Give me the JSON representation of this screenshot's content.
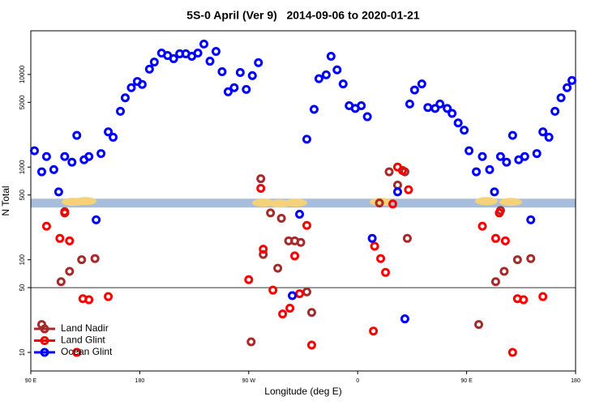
{
  "chart_data": {
    "type": "scatter",
    "title": "5S-0 April (Ver 9)   2014-09-06 to 2020-01-21",
    "x_label": "Longitude (deg E)",
    "y_label": "N Total",
    "xlim": [
      90,
      540
    ],
    "xticks": [
      {
        "value": 90,
        "label": "90 E"
      },
      180,
      {
        "value": 270,
        "label": "90 W"
      },
      {
        "value": 360,
        "label": "0"
      },
      {
        "value": 450,
        "label": "90 E"
      },
      {
        "value": 540,
        "label": "180"
      }
    ],
    "ylim": [
      6.3,
      29600
    ],
    "log_y": true,
    "yticks": [
      10,
      50,
      100,
      500,
      1000,
      5000,
      10000
    ],
    "hline": 50,
    "band": [
      366,
      456
    ],
    "band_color": "#a7bddc",
    "legend": "bottom-left",
    "series": [
      {
        "name": "Land Nadir",
        "color": "#a52a2a",
        "x": [
          99,
          115,
          122,
          132,
          143,
          118,
          128,
          280,
          282,
          288,
          294,
          297,
          303,
          308,
          313,
          318,
          322,
          272,
          378,
          386,
          393,
          399,
          401,
          460,
          474,
          481,
          492,
          503,
          478
        ],
        "values": [
          20,
          58,
          75,
          100,
          103,
          330,
          10,
          750,
          114,
          320,
          81,
          280,
          160,
          160,
          154,
          45,
          27,
          13,
          410,
          890,
          640,
          890,
          170,
          20,
          58,
          75,
          100,
          103,
          340
        ]
      },
      {
        "name": "Land Glint",
        "color": "#ff0000",
        "x": [
          103,
          118,
          114,
          122,
          133,
          138,
          154,
          128,
          270,
          280,
          282,
          290,
          298,
          304,
          308,
          312,
          318,
          322,
          373,
          374,
          379,
          383,
          389,
          393,
          397,
          402,
          463,
          477,
          474,
          482,
          488,
          492,
          497,
          513
        ],
        "values": [
          230,
          320,
          170,
          160,
          38,
          37,
          40,
          10,
          61,
          590,
          130,
          47,
          26,
          30,
          110,
          43,
          235,
          12,
          17,
          140,
          103,
          73,
          400,
          1000,
          920,
          570,
          230,
          320,
          170,
          160,
          10,
          38,
          37,
          40
        ]
      },
      {
        "name": "Ocean Glint",
        "color": "#0000ff",
        "x": [
          93,
          99,
          103,
          109,
          113,
          118,
          124,
          128,
          134,
          138,
          144,
          148,
          154,
          158,
          164,
          168,
          173,
          178,
          182,
          188,
          192,
          198,
          203,
          208,
          213,
          218,
          223,
          228,
          233,
          238,
          243,
          248,
          253,
          258,
          263,
          268,
          273,
          278,
          306,
          312,
          318,
          324,
          328,
          334,
          338,
          343,
          348,
          353,
          358,
          363,
          368,
          372,
          393,
          399,
          403,
          407,
          413,
          418,
          424,
          428,
          434,
          438,
          443,
          448,
          452,
          458,
          463,
          469,
          473,
          478,
          483,
          488,
          493,
          498,
          503,
          508,
          513,
          518,
          523,
          528,
          533,
          537
        ],
        "values": [
          1500,
          890,
          1300,
          940,
          540,
          1300,
          1130,
          2200,
          1200,
          1300,
          270,
          1400,
          2400,
          2100,
          4000,
          5600,
          7200,
          8400,
          7800,
          11400,
          13600,
          17000,
          16000,
          14800,
          16700,
          16700,
          15700,
          17000,
          21300,
          13900,
          17700,
          10700,
          6500,
          7200,
          10500,
          6900,
          9700,
          13400,
          41,
          310,
          2000,
          4200,
          9000,
          9900,
          15700,
          11200,
          7900,
          4600,
          4300,
          4600,
          3500,
          170,
          540,
          23,
          4800,
          6800,
          7900,
          4400,
          4300,
          4800,
          4300,
          3800,
          3000,
          2500,
          1500,
          890,
          1300,
          940,
          540,
          1300,
          1130,
          2200,
          1200,
          1300,
          270,
          1400,
          2400,
          2100,
          4000,
          5600,
          7200,
          8600
        ]
      }
    ]
  }
}
